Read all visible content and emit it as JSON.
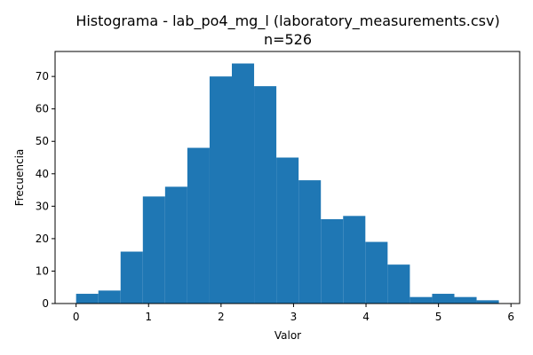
{
  "chart_data": {
    "type": "bar",
    "title": "Histograma - lab_po4_mg_l (laboratory_measurements.csv)",
    "subtitle": "n=526",
    "xlabel": "Valor",
    "ylabel": "Frecuencia",
    "bin_edges": [
      0.0,
      0.307,
      0.614,
      0.921,
      1.228,
      1.535,
      1.842,
      2.149,
      2.456,
      2.763,
      3.07,
      3.377,
      3.684,
      3.991,
      4.298,
      4.605,
      4.912,
      5.219,
      5.526,
      5.833
    ],
    "values": [
      3,
      4,
      16,
      33,
      36,
      48,
      70,
      74,
      67,
      45,
      38,
      26,
      27,
      19,
      12,
      2,
      3,
      2,
      1
    ],
    "xlim": [
      -0.29,
      6.12
    ],
    "ylim": [
      0,
      77.7
    ],
    "xticks": [
      0,
      1,
      2,
      3,
      4,
      5,
      6
    ],
    "yticks": [
      0,
      10,
      20,
      30,
      40,
      50,
      60,
      70
    ],
    "bar_color": "#1f77b4",
    "grid": false,
    "legend": false
  }
}
